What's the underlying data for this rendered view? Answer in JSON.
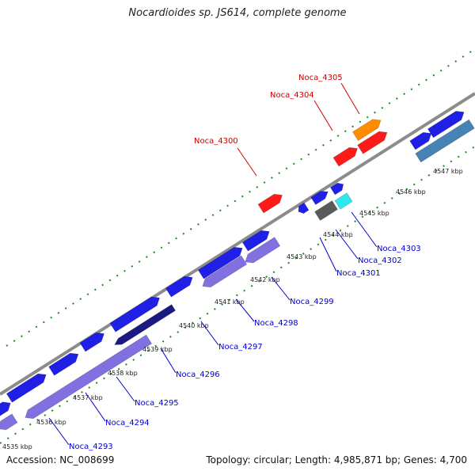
{
  "title": "Nocardioides sp. JS614, complete genome",
  "accession": "Accession: NC_008699",
  "summary": "Topology: circular; Length: 4,985,871 bp; Genes: 4,700",
  "colors": {
    "backbone": "#8c8c8c",
    "tick_dots": "#1a8c1a",
    "forward_gene": "#1f1fe6",
    "reverse_gene": "#8070e0",
    "red_gene": "#ff1a1a",
    "orange_gene": "#ff8c00",
    "cyan_gene": "#2ee6f0",
    "gray_gene": "#5a5a5a",
    "steel_gene": "#4682b4",
    "navy_gene": "#1a1a80",
    "red_label": "#cc0000",
    "blue_label": "#0000cc"
  },
  "scale_labels": [
    "4535 kbp",
    "4536 kbp",
    "4537 kbp",
    "4538 kbp",
    "4539 kbp",
    "4540 kbp",
    "4541 kbp",
    "4542 kbp",
    "4543 kbp",
    "4544 kbp",
    "4545 kbp",
    "4546 kbp",
    "4547 kbp"
  ],
  "labels_top": [
    "Noca_4300",
    "Noca_4304",
    "Noca_4305"
  ],
  "labels_bottom": [
    "Noca_4293",
    "Noca_4294",
    "Noca_4295",
    "Noca_4296",
    "Noca_4297",
    "Noca_4298",
    "Noca_4299",
    "Noca_4301",
    "Noca_4302",
    "Noca_4303"
  ]
}
